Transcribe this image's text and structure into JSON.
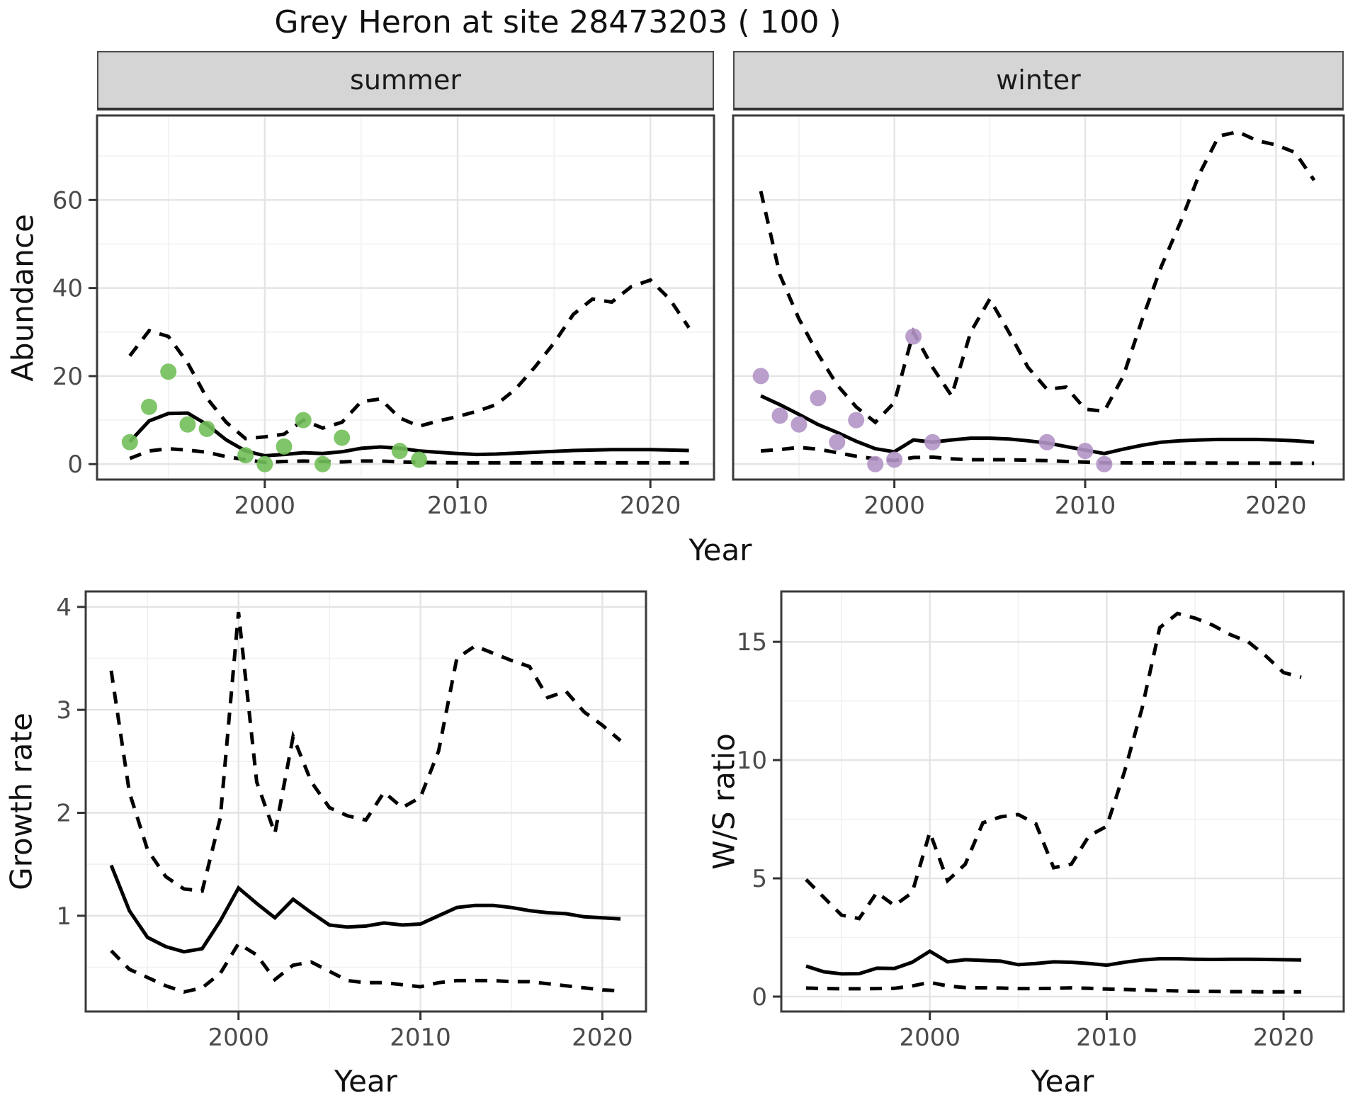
{
  "title": "Grey Heron at site 28473203 ( 100 )",
  "facets": {
    "summer": "summer",
    "winter": "winter"
  },
  "axes": {
    "abundance": "Abundance",
    "year": "Year",
    "growth_rate": "Growth rate",
    "ws_ratio": "W/S ratio"
  },
  "colors": {
    "summer_points": "#72bf5a",
    "winter_points": "#b294c7",
    "line": "#000000",
    "strip_bg": "#d5d5d5",
    "grid_major": "#e4e4e4",
    "grid_minor": "#f1f1f1",
    "panel_border": "#3a3a3a",
    "tick_text": "#4a4a4a"
  },
  "chart_data": [
    {
      "id": "abundance-summer",
      "type": "line",
      "panel": "summer",
      "facet": "summer",
      "xlabel": "Year",
      "ylabel": "Abundance",
      "xlim": [
        1991.3,
        2023.3
      ],
      "ylim": [
        -3.5,
        79.2
      ],
      "x_ticks": [
        2000,
        2010,
        2020
      ],
      "x_minor": [
        1995,
        2005,
        2015
      ],
      "y_ticks": [
        0,
        20,
        40,
        60
      ],
      "y_minor": [
        10,
        30,
        50,
        70
      ],
      "show_y_labels": true,
      "years": [
        1993,
        1994,
        1995,
        1996,
        1997,
        1998,
        1999,
        2000,
        2001,
        2002,
        2003,
        2004,
        2005,
        2006,
        2007,
        2008,
        2009,
        2010,
        2011,
        2012,
        2013,
        2014,
        2015,
        2016,
        2017,
        2018,
        2019,
        2020,
        2021,
        2022
      ],
      "series": [
        {
          "name": "fitted_mean",
          "style": "solid",
          "values": [
            5.1,
            9.8,
            11.5,
            11.6,
            9.0,
            5.5,
            3.0,
            1.9,
            2.2,
            2.6,
            2.4,
            2.8,
            3.6,
            3.9,
            3.6,
            3.0,
            2.7,
            2.4,
            2.2,
            2.3,
            2.5,
            2.7,
            2.9,
            3.1,
            3.2,
            3.3,
            3.3,
            3.3,
            3.2,
            3.1
          ]
        },
        {
          "name": "ci_upper",
          "style": "dashed",
          "values": [
            24.6,
            30.3,
            29.0,
            23.0,
            15.0,
            9.5,
            5.8,
            6.2,
            6.8,
            10.0,
            8.2,
            9.5,
            14.2,
            14.8,
            10.5,
            8.6,
            9.8,
            10.8,
            12.0,
            13.5,
            17.0,
            22.0,
            27.5,
            34.0,
            37.5,
            36.8,
            40.3,
            41.8,
            37.5,
            31.0
          ]
        },
        {
          "name": "ci_lower",
          "style": "dashed",
          "values": [
            1.3,
            3.0,
            3.5,
            3.2,
            2.7,
            1.7,
            1.0,
            0.4,
            0.6,
            0.7,
            0.6,
            0.5,
            0.7,
            0.7,
            0.5,
            0.4,
            0.35,
            0.3,
            0.3,
            0.3,
            0.3,
            0.3,
            0.3,
            0.3,
            0.3,
            0.3,
            0.3,
            0.3,
            0.3,
            0.3
          ]
        }
      ],
      "points": {
        "name": "observed_summer_counts",
        "color": "#72bf5a",
        "years": [
          1993,
          1994,
          1995,
          1996,
          1997,
          1999,
          2000,
          2001,
          2002,
          2003,
          2004,
          2007,
          2008
        ],
        "values": [
          5,
          13,
          21,
          9,
          8,
          2,
          0,
          4,
          10,
          0,
          6,
          3,
          1
        ]
      }
    },
    {
      "id": "abundance-winter",
      "type": "line",
      "panel": "winter",
      "facet": "winter",
      "xlabel": "Year",
      "ylabel": "Abundance",
      "xlim": [
        1991.55,
        2023.55
      ],
      "ylim": [
        -3.5,
        79.2
      ],
      "x_ticks": [
        2000,
        2010,
        2020
      ],
      "x_minor": [
        1995,
        2005,
        2015
      ],
      "y_ticks": [
        0,
        20,
        40,
        60
      ],
      "y_minor": [
        10,
        30,
        50,
        70
      ],
      "show_y_labels": false,
      "years": [
        1993,
        1994,
        1995,
        1996,
        1997,
        1998,
        1999,
        2000,
        2001,
        2002,
        2003,
        2004,
        2005,
        2006,
        2007,
        2008,
        2009,
        2010,
        2011,
        2012,
        2013,
        2014,
        2015,
        2016,
        2017,
        2018,
        2019,
        2020,
        2021,
        2022
      ],
      "series": [
        {
          "name": "fitted_mean",
          "style": "solid",
          "values": [
            15.5,
            13.5,
            11.3,
            9.0,
            7.2,
            5.2,
            3.5,
            2.8,
            5.5,
            5.0,
            5.5,
            5.9,
            5.9,
            5.7,
            5.3,
            4.8,
            4.0,
            3.2,
            2.4,
            3.4,
            4.3,
            5.0,
            5.3,
            5.5,
            5.6,
            5.6,
            5.6,
            5.5,
            5.3,
            5.0
          ]
        },
        {
          "name": "ci_upper",
          "style": "dashed",
          "values": [
            62,
            43,
            33,
            25,
            18,
            13,
            9.5,
            14,
            30,
            22,
            15.5,
            30,
            37.5,
            30,
            22,
            17,
            17.5,
            12.5,
            12,
            20,
            33,
            45,
            55,
            66,
            74.5,
            75.5,
            73.5,
            72.5,
            70.8,
            64.5
          ]
        },
        {
          "name": "ci_lower",
          "style": "dashed",
          "values": [
            3.0,
            3.3,
            3.8,
            3.4,
            2.6,
            1.8,
            1.2,
            0.8,
            1.5,
            1.6,
            1.2,
            1.0,
            1.0,
            1.0,
            0.9,
            0.8,
            0.6,
            0.45,
            0.3,
            0.3,
            0.28,
            0.26,
            0.25,
            0.24,
            0.23,
            0.22,
            0.22,
            0.21,
            0.2,
            0.2
          ]
        }
      ],
      "points": {
        "name": "observed_winter_counts",
        "color": "#b294c7",
        "years": [
          1993,
          1994,
          1995,
          1996,
          1997,
          1998,
          1999,
          2000,
          2001,
          2002,
          2008,
          2010,
          2011
        ],
        "values": [
          20,
          11,
          9,
          15,
          5,
          10,
          0,
          1,
          29,
          5,
          5,
          3,
          0
        ]
      }
    },
    {
      "id": "growth-rate",
      "type": "line",
      "panel": "growth",
      "xlabel": "Year",
      "ylabel": "Growth rate",
      "xlim": [
        1991.6,
        2022.4
      ],
      "ylim": [
        0.07,
        4.15
      ],
      "x_ticks": [
        2000,
        2010,
        2020
      ],
      "x_minor": [
        1995,
        2005,
        2015
      ],
      "y_ticks": [
        1,
        2,
        3,
        4
      ],
      "y_minor": [
        0.5,
        1.5,
        2.5,
        3.5
      ],
      "show_y_labels": true,
      "years": [
        1993,
        1994,
        1995,
        1996,
        1997,
        1998,
        1999,
        2000,
        2001,
        2002,
        2003,
        2004,
        2005,
        2006,
        2007,
        2008,
        2009,
        2010,
        2011,
        2012,
        2013,
        2014,
        2015,
        2016,
        2017,
        2018,
        2019,
        2020,
        2021
      ],
      "series": [
        {
          "name": "fitted_mean",
          "style": "solid",
          "values": [
            1.49,
            1.05,
            0.79,
            0.7,
            0.65,
            0.68,
            0.95,
            1.27,
            1.12,
            0.98,
            1.16,
            1.03,
            0.91,
            0.89,
            0.9,
            0.93,
            0.91,
            0.92,
            1.0,
            1.08,
            1.1,
            1.1,
            1.08,
            1.05,
            1.03,
            1.02,
            0.99,
            0.98,
            0.97
          ]
        },
        {
          "name": "ci_upper",
          "style": "dashed",
          "values": [
            3.38,
            2.2,
            1.64,
            1.38,
            1.26,
            1.24,
            1.95,
            3.95,
            2.3,
            1.8,
            2.74,
            2.3,
            2.05,
            1.97,
            1.93,
            2.2,
            2.05,
            2.15,
            2.6,
            3.5,
            3.62,
            3.55,
            3.48,
            3.42,
            3.12,
            3.18,
            2.98,
            2.85,
            2.7
          ]
        },
        {
          "name": "ci_lower",
          "style": "dashed",
          "values": [
            0.66,
            0.48,
            0.4,
            0.32,
            0.26,
            0.3,
            0.44,
            0.73,
            0.62,
            0.38,
            0.52,
            0.55,
            0.46,
            0.37,
            0.35,
            0.35,
            0.33,
            0.31,
            0.35,
            0.37,
            0.37,
            0.37,
            0.36,
            0.36,
            0.34,
            0.32,
            0.3,
            0.28,
            0.27
          ]
        }
      ]
    },
    {
      "id": "ws-ratio",
      "type": "line",
      "panel": "ws",
      "xlabel": "Year",
      "ylabel": "W/S ratio",
      "xlim": [
        1991.6,
        2023.4
      ],
      "ylim": [
        -0.63,
        17.13
      ],
      "x_ticks": [
        2000,
        2010,
        2020
      ],
      "x_minor": [
        1995,
        2005,
        2015
      ],
      "y_ticks": [
        0,
        5,
        10,
        15
      ],
      "y_minor": [
        2.5,
        7.5,
        12.5
      ],
      "show_y_labels": true,
      "years": [
        1993,
        1994,
        1995,
        1996,
        1997,
        1998,
        1999,
        2000,
        2001,
        2002,
        2003,
        2004,
        2005,
        2006,
        2007,
        2008,
        2009,
        2010,
        2011,
        2012,
        2013,
        2014,
        2015,
        2016,
        2017,
        2018,
        2019,
        2020,
        2021
      ],
      "series": [
        {
          "name": "fitted_mean",
          "style": "solid",
          "values": [
            1.29,
            1.05,
            0.96,
            0.97,
            1.2,
            1.19,
            1.45,
            1.92,
            1.47,
            1.56,
            1.53,
            1.5,
            1.35,
            1.4,
            1.47,
            1.45,
            1.4,
            1.33,
            1.45,
            1.55,
            1.6,
            1.6,
            1.58,
            1.57,
            1.58,
            1.58,
            1.57,
            1.56,
            1.55
          ]
        },
        {
          "name": "ci_upper",
          "style": "dashed",
          "values": [
            4.95,
            4.2,
            3.45,
            3.3,
            4.4,
            3.85,
            4.4,
            6.95,
            4.9,
            5.6,
            7.35,
            7.6,
            7.7,
            7.3,
            5.45,
            5.6,
            6.8,
            7.2,
            9.5,
            12.2,
            15.6,
            16.2,
            16.0,
            15.7,
            15.3,
            15.0,
            14.4,
            13.7,
            13.5
          ]
        },
        {
          "name": "ci_lower",
          "style": "dashed",
          "values": [
            0.36,
            0.34,
            0.33,
            0.33,
            0.34,
            0.35,
            0.45,
            0.6,
            0.45,
            0.38,
            0.37,
            0.36,
            0.34,
            0.34,
            0.35,
            0.37,
            0.35,
            0.32,
            0.3,
            0.28,
            0.26,
            0.24,
            0.22,
            0.22,
            0.21,
            0.21,
            0.2,
            0.2,
            0.2
          ]
        }
      ]
    }
  ]
}
